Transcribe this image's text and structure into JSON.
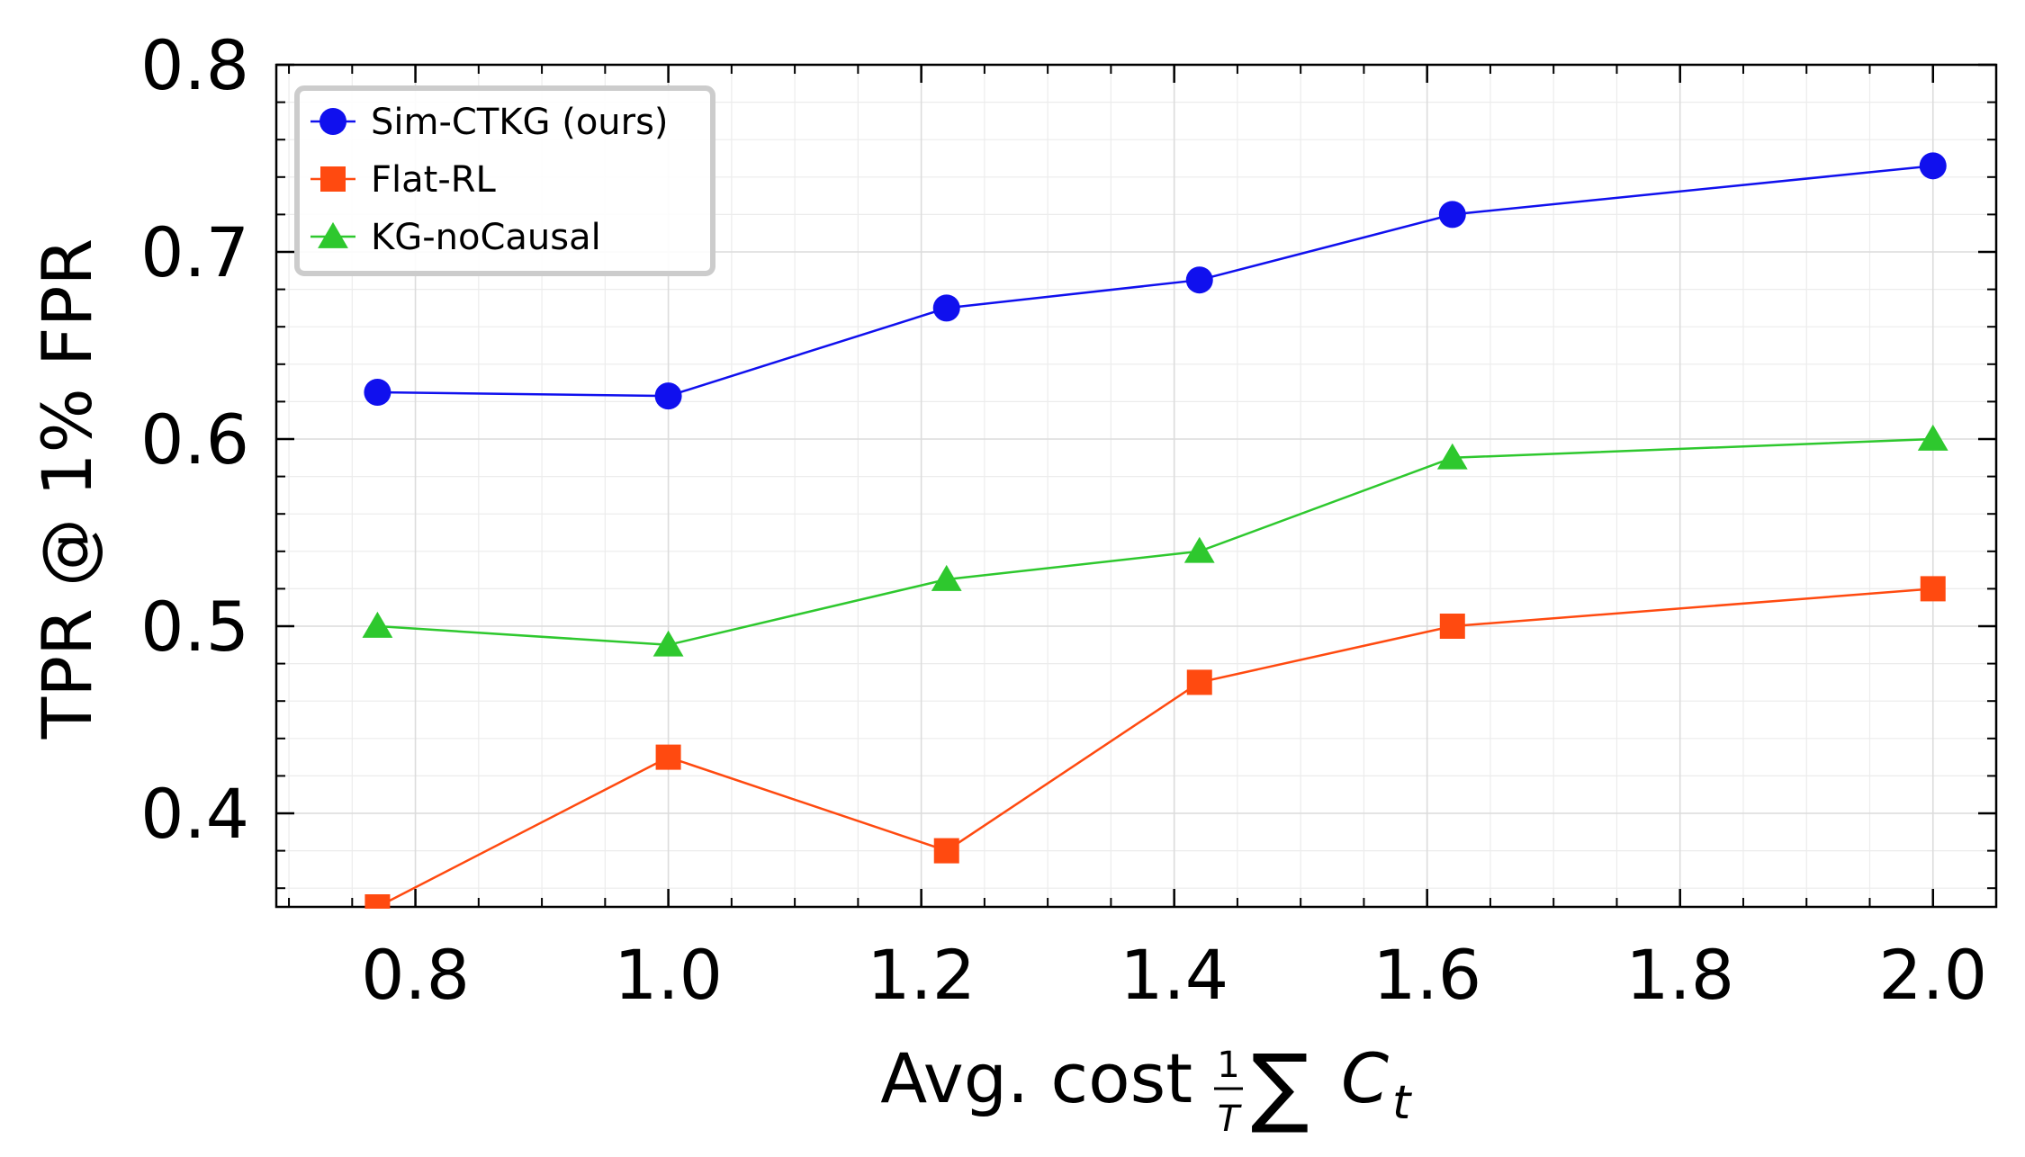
{
  "chart_data": {
    "type": "line",
    "title": "",
    "xlabel": "Avg. cost",
    "xlabel_math": {
      "frac_num": "1",
      "frac_den": "T",
      "sum": "∑",
      "var": "C",
      "sub": "t"
    },
    "ylabel": "TPR @ 1% FPR",
    "xlim": [
      0.69,
      2.05
    ],
    "ylim": [
      0.35,
      0.8
    ],
    "xticks": [
      "0.8",
      "1.0",
      "1.2",
      "1.4",
      "1.6",
      "1.8",
      "2.0"
    ],
    "yticks": [
      "0.4",
      "0.5",
      "0.6",
      "0.7",
      "0.8"
    ],
    "grid": true,
    "legend_position": "top-left",
    "series": [
      {
        "name": "Sim-CTKG (ours)",
        "color": "#1010ee",
        "marker": "circle",
        "x": [
          0.77,
          1.0,
          1.22,
          1.42,
          1.62,
          2.0
        ],
        "y": [
          0.625,
          0.623,
          0.67,
          0.685,
          0.72,
          0.746
        ]
      },
      {
        "name": "Flat-RL",
        "color": "#ff4a10",
        "marker": "square",
        "x": [
          0.77,
          1.0,
          1.22,
          1.42,
          1.62,
          2.0
        ],
        "y": [
          0.35,
          0.43,
          0.38,
          0.47,
          0.5,
          0.52
        ]
      },
      {
        "name": "KG-noCausal",
        "color": "#2ec82e",
        "marker": "triangle",
        "x": [
          0.77,
          1.0,
          1.22,
          1.42,
          1.62,
          2.0
        ],
        "y": [
          0.5,
          0.49,
          0.525,
          0.54,
          0.59,
          0.6
        ]
      }
    ]
  }
}
